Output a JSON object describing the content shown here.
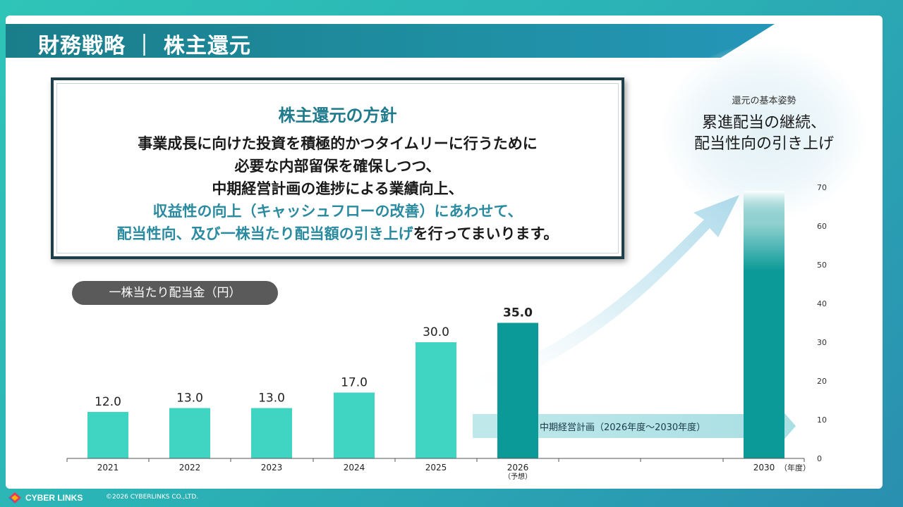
{
  "page": {
    "title": "財務戦略 ｜ 株主還元",
    "policy": {
      "heading": "株主還元の方針",
      "line1": "事業成長に向けた投資を積極的かつタイムリーに行うために",
      "line2": "必要な内部留保を確保しつつ、",
      "line3": "中期経営計画の進捗による業績向上、",
      "line4": "収益性の向上（キャッシュフローの改善）にあわせて、",
      "line5_teal": "配当性向、及び一株当たり配当額の引き上げ",
      "line5_rest": "を行ってまいります。"
    },
    "stance": {
      "label": "還元の基本姿勢",
      "line1": "累進配当の継続、",
      "line2": "配当性向の引き上げ"
    },
    "plan_label": "中期経営計画（2026年度～2030年度）",
    "footer": {
      "logo": "CYBER LINKS",
      "copyright": "©2026 CYBERLINKS CO.,LTD."
    }
  },
  "colors": {
    "bar_actual": "#40d4c2",
    "bar_forecast": "#0b9a98",
    "title_bar": "#1f8fa3",
    "accent_text": "#2a8aa0"
  },
  "chart_data": {
    "type": "bar",
    "title": "一株当たり配当金（円）",
    "categories": [
      "2021",
      "2022",
      "2023",
      "2024",
      "2025",
      "2026",
      "2030"
    ],
    "category_sublabels": [
      "",
      "",
      "",
      "",
      "",
      "（予想）",
      ""
    ],
    "x_unit_label": "（年度）",
    "values": [
      12.0,
      13.0,
      13.0,
      17.0,
      30.0,
      35.0,
      null
    ],
    "value_labels": [
      "12.0",
      "13.0",
      "13.0",
      "17.0",
      "30.0",
      "35.0",
      ""
    ],
    "bar_styles": [
      "actual",
      "actual",
      "actual",
      "actual",
      "actual",
      "forecast",
      "target-gradient"
    ],
    "ylim": [
      0,
      70
    ],
    "yticks": [
      0,
      10,
      20,
      30,
      40,
      50,
      60,
      70
    ],
    "y_axis_side": "right",
    "grid": false
  }
}
